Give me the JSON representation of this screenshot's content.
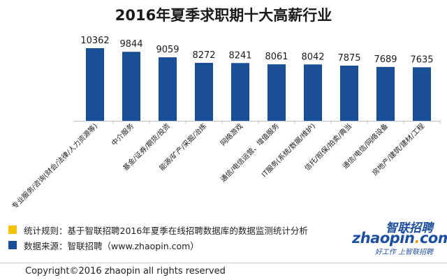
{
  "title": "2016年夏季求职期十大高薪行业",
  "chart_data": {
    "type": "bar",
    "categories": [
      "专业服务/咨询(财会/法律/人力资源等)",
      "中介服务",
      "基金/证券/期货/投资",
      "能源/矿产/采掘/冶炼",
      "网络游戏",
      "通信/电信运营、增值服务",
      "IT服务(系统/数据/维护)",
      "信托/担保/拍卖/典当",
      "通信/电信/网络设备",
      "房地产/建筑/建材/工程"
    ],
    "values": [
      10362,
      9844,
      9059,
      8272,
      8241,
      8061,
      8042,
      7875,
      7689,
      7635
    ],
    "ylim": [
      0,
      11000
    ],
    "bar_color": "#1a4e96",
    "grid": false,
    "legend": "bottom"
  },
  "legend": {
    "items": [
      {
        "text": "统计规则：基于智联招聘2016年夏季在线招聘数据库的数据监测统计分析",
        "color": "#f5c400"
      },
      {
        "text": "数据来源：智联招聘（www.zhaopin.com）",
        "color": "#1a4e96"
      }
    ]
  },
  "logo": {
    "cn": "智联招聘",
    "en_main": "zhaopin",
    "en_dot": ".",
    "en_tld": "com",
    "slogan": "好工作 上智联招聘"
  },
  "copyright": "Copyright©2016  zhaopin all rights reserved"
}
